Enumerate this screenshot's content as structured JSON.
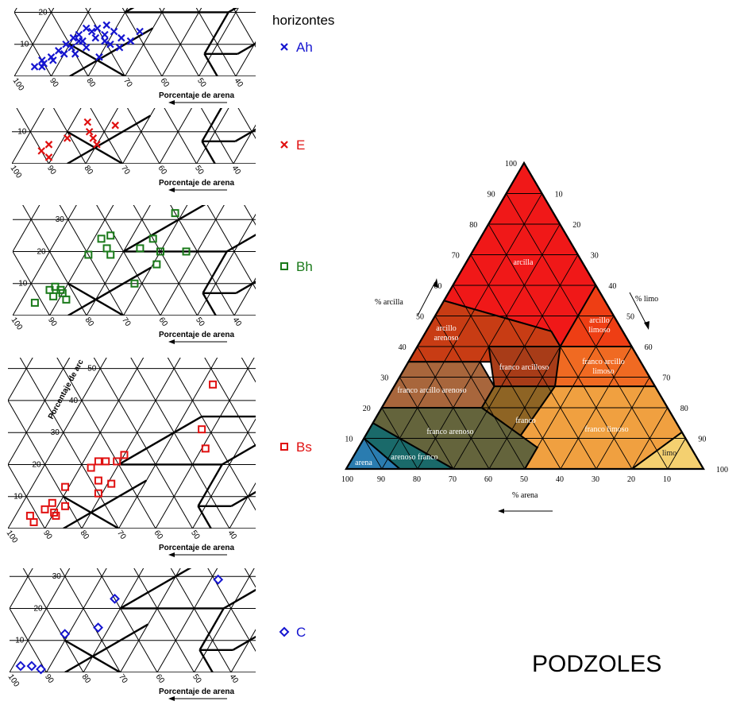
{
  "legend_title": "horizontes",
  "big_title": "PODZOLES",
  "sand_axis_label": "Porcentaje de arena",
  "clay_axis_label_partial": "Porcentaje de arc",
  "colors": {
    "Ah": "#1515d0",
    "E": "#e01010",
    "Bh": "#1a7a1a",
    "Bs": "#e01010",
    "C": "#1515d0"
  },
  "chart_data": [
    {
      "type": "scatter",
      "horizon": "Ah",
      "marker": "x",
      "clay_ticks": [
        "20",
        "10"
      ],
      "sand_ticks": [
        "100",
        "90",
        "80",
        "70",
        "60",
        "50",
        "40"
      ],
      "points": [
        [
          95,
          5
        ],
        [
          96,
          3
        ],
        [
          94,
          4
        ],
        [
          93,
          6
        ],
        [
          92,
          8
        ],
        [
          91,
          10
        ],
        [
          90,
          12
        ],
        [
          89,
          13
        ],
        [
          88,
          15
        ],
        [
          87,
          11
        ],
        [
          86,
          14
        ],
        [
          85,
          15
        ],
        [
          84,
          12
        ],
        [
          83,
          16
        ],
        [
          82,
          13
        ],
        [
          81,
          11
        ],
        [
          80,
          14
        ],
        [
          79,
          10
        ],
        [
          77,
          12
        ],
        [
          76,
          9
        ],
        [
          74,
          11
        ],
        [
          73,
          14
        ],
        [
          92,
          5
        ],
        [
          90,
          7
        ],
        [
          89,
          9
        ],
        [
          94,
          3
        ],
        [
          87,
          7
        ],
        [
          85,
          9
        ],
        [
          88,
          11
        ],
        [
          80,
          6
        ]
      ]
    },
    {
      "type": "scatter",
      "horizon": "E",
      "marker": "x",
      "clay_ticks": [
        "10"
      ],
      "sand_ticks": [
        "100",
        "90",
        "80",
        "70",
        "60",
        "50",
        "40"
      ],
      "points": [
        [
          94,
          4
        ],
        [
          93,
          6
        ],
        [
          91,
          2
        ],
        [
          89,
          8
        ],
        [
          86,
          13
        ],
        [
          84,
          10
        ],
        [
          82,
          8
        ],
        [
          80,
          6
        ],
        [
          78,
          12
        ]
      ]
    },
    {
      "type": "scatter",
      "horizon": "Bh",
      "marker": "square",
      "clay_ticks": [
        "30",
        "20",
        "10"
      ],
      "sand_ticks": [
        "100",
        "90",
        "80",
        "70",
        "60",
        "50",
        "40"
      ],
      "points": [
        [
          96,
          4
        ],
        [
          94,
          8
        ],
        [
          93,
          9
        ],
        [
          92,
          6
        ],
        [
          91,
          8
        ],
        [
          90,
          7
        ],
        [
          88,
          5
        ],
        [
          89,
          19
        ],
        [
          88,
          24
        ],
        [
          86,
          25
        ],
        [
          85,
          21
        ],
        [
          83,
          19
        ],
        [
          76,
          21
        ],
        [
          74,
          24
        ],
        [
          72,
          32
        ],
        [
          70,
          20
        ],
        [
          72,
          10
        ],
        [
          69,
          16
        ],
        [
          63,
          20
        ]
      ]
    },
    {
      "type": "scatter",
      "horizon": "Bs",
      "marker": "square",
      "clay_ticks": [
        "50",
        "40",
        "30",
        "20",
        "10"
      ],
      "sand_ticks": [
        "100",
        "90",
        "80",
        "70",
        "60",
        "50",
        "40"
      ],
      "points": [
        [
          96,
          4
        ],
        [
          94,
          2
        ],
        [
          93,
          6
        ],
        [
          92,
          8
        ],
        [
          90,
          5
        ],
        [
          89,
          4
        ],
        [
          88,
          7
        ],
        [
          91,
          13
        ],
        [
          87,
          19
        ],
        [
          86,
          21
        ],
        [
          84,
          21
        ],
        [
          83,
          15
        ],
        [
          81,
          21
        ],
        [
          80,
          23
        ],
        [
          81,
          11
        ],
        [
          79,
          14
        ],
        [
          67,
          45
        ],
        [
          63,
          31
        ],
        [
          59,
          25
        ]
      ]
    },
    {
      "type": "scatter",
      "horizon": "C",
      "marker": "diamond",
      "clay_ticks": [
        "30",
        "20",
        "10"
      ],
      "sand_ticks": [
        "100",
        "90",
        "80",
        "70",
        "60",
        "50",
        "40"
      ],
      "points": [
        [
          98,
          2
        ],
        [
          95,
          2
        ],
        [
          92,
          1
        ],
        [
          91,
          12
        ],
        [
          83,
          23
        ],
        [
          83,
          14
        ],
        [
          58,
          29
        ]
      ]
    },
    {
      "type": "ternary",
      "title": "",
      "axes": {
        "clay": {
          "label": "% arcilla",
          "ticks": [
            "10",
            "20",
            "30",
            "40",
            "50",
            "60",
            "70",
            "80",
            "90",
            "100"
          ]
        },
        "silt": {
          "label": "% limo",
          "ticks": [
            "10",
            "20",
            "30",
            "40",
            "50",
            "60",
            "70",
            "80",
            "90",
            "100"
          ]
        },
        "sand": {
          "label": "% arena",
          "ticks": [
            "100",
            "90",
            "80",
            "70",
            "60",
            "50",
            "40",
            "30",
            "20",
            "10"
          ]
        }
      },
      "classes": [
        {
          "name": "arcilla",
          "color": "#f01818"
        },
        {
          "name": "arcillo limoso",
          "color": "#ee3e14"
        },
        {
          "name": "arcillo arenoso",
          "color": "#c83c14"
        },
        {
          "name": "franco arcilloso",
          "color": "#a83c18"
        },
        {
          "name": "franco arcillo limoso",
          "color": "#f06a22"
        },
        {
          "name": "franco arcillo arenoso",
          "color": "#a8663c"
        },
        {
          "name": "franco",
          "color": "#8e6424"
        },
        {
          "name": "franco limoso",
          "color": "#f0a040"
        },
        {
          "name": "franco arenoso",
          "color": "#64643c"
        },
        {
          "name": "limo",
          "color": "#f4d070"
        },
        {
          "name": "arenoso franco",
          "color": "#1a6a6a"
        },
        {
          "name": "arena",
          "color": "#2a7cb0"
        }
      ]
    }
  ]
}
